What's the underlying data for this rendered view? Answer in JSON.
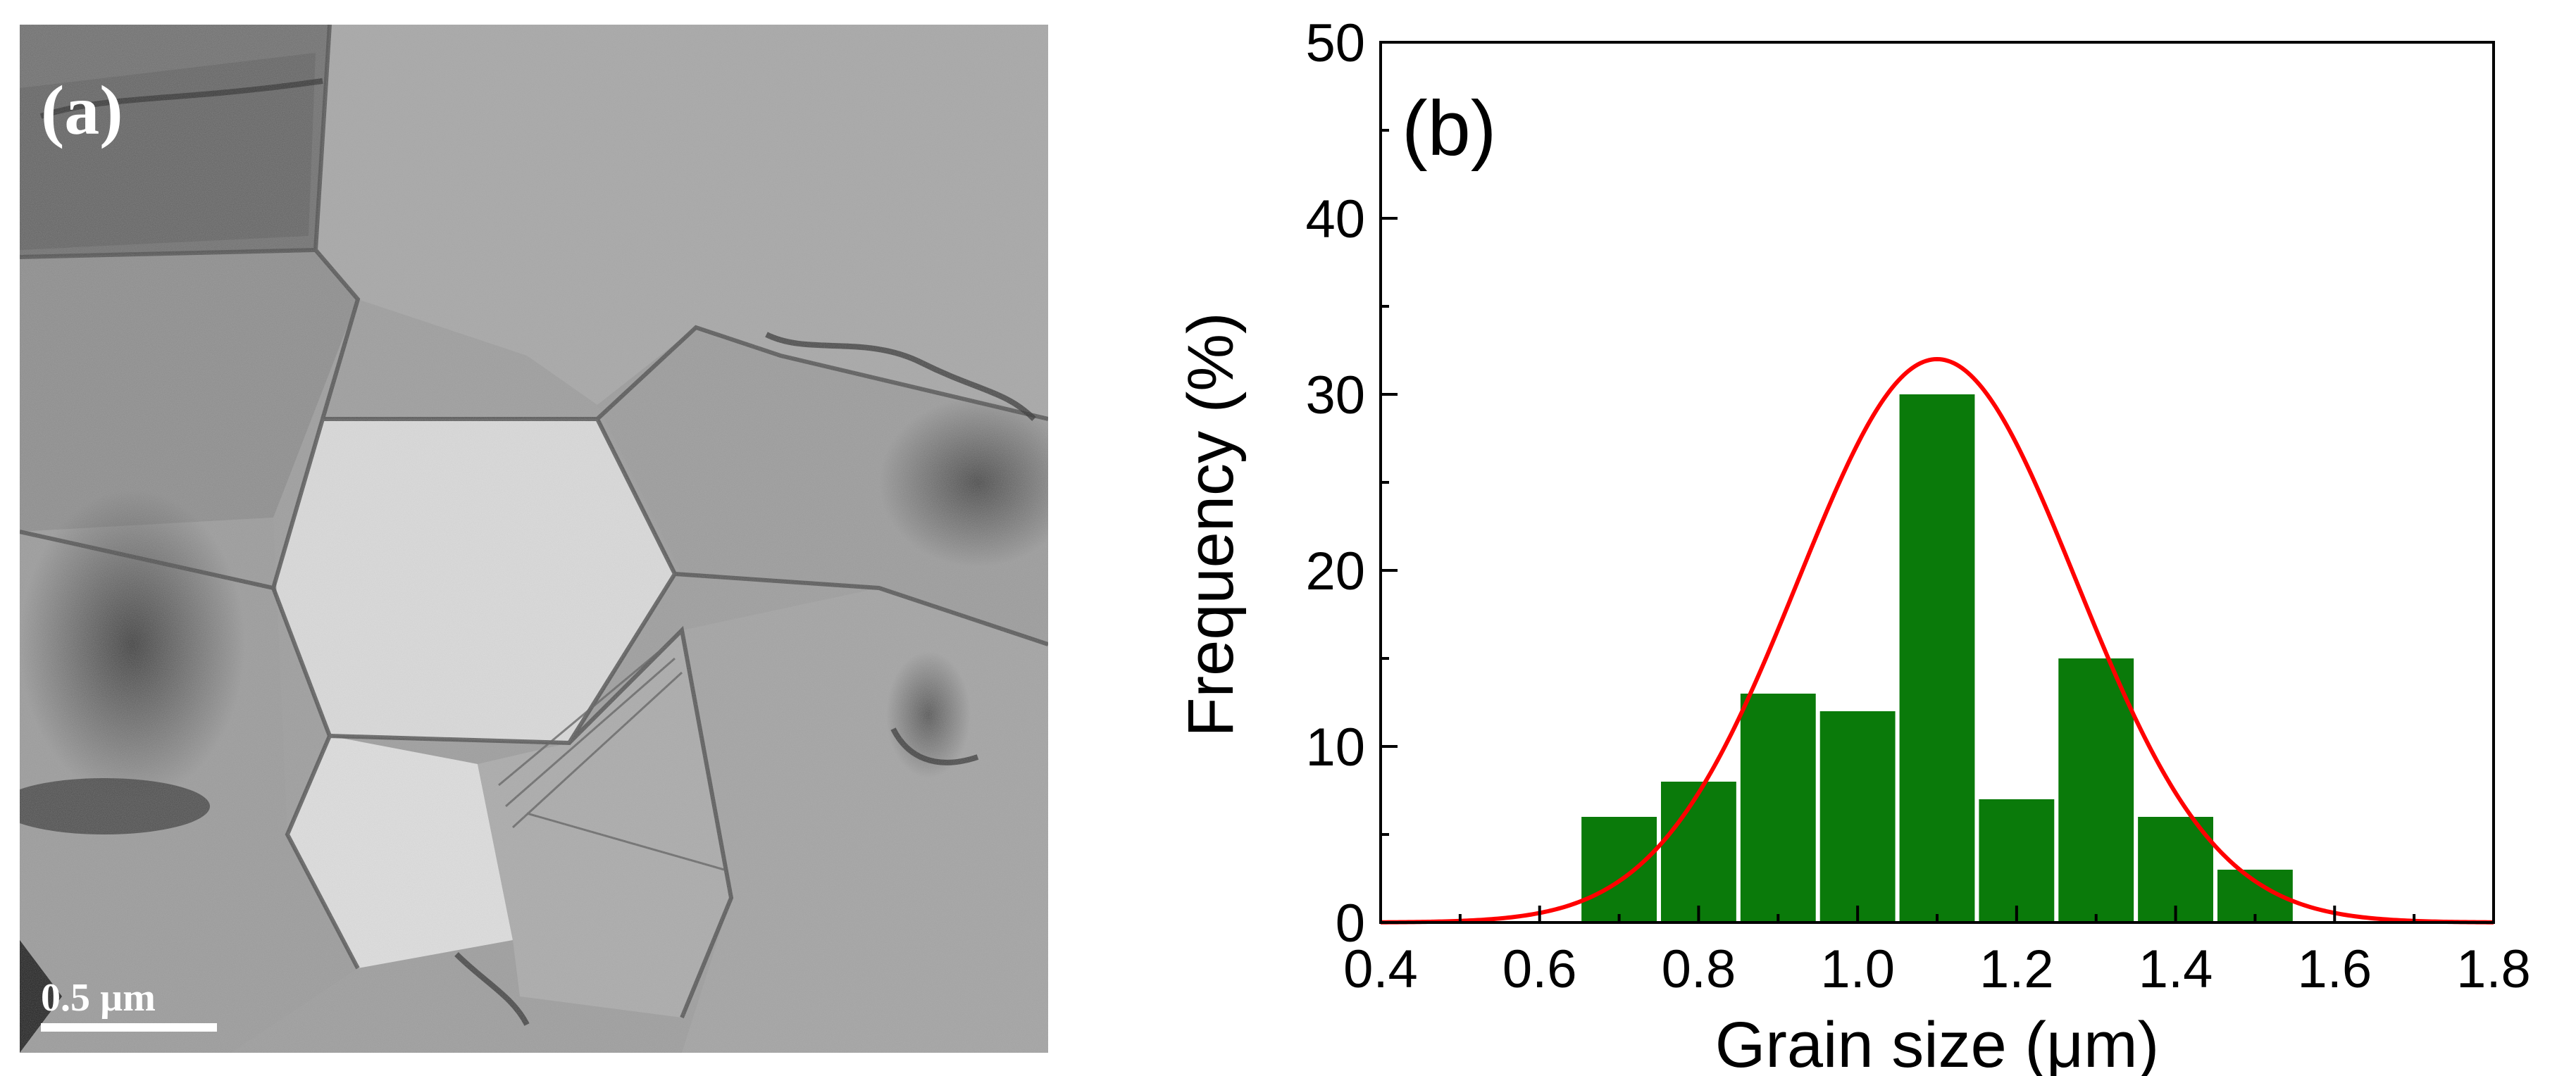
{
  "panel_a": {
    "label": "(a)",
    "scale_bar_label": "0.5 µm"
  },
  "panel_b": {
    "label": "(b)"
  },
  "chart_data": {
    "type": "bar",
    "title": "",
    "xlabel": "Grain size (μm)",
    "ylabel": "Frequency (%)",
    "xlim": [
      0.4,
      1.8
    ],
    "ylim": [
      0,
      50
    ],
    "x_ticks": [
      "0.4",
      "0.6",
      "0.8",
      "1.0",
      "1.2",
      "1.4",
      "1.6",
      "1.8"
    ],
    "y_ticks": [
      "0",
      "10",
      "20",
      "30",
      "40",
      "50"
    ],
    "bin_width": 0.1,
    "bin_centers": [
      0.7,
      0.8,
      0.9,
      1.0,
      1.1,
      1.2,
      1.3,
      1.4,
      1.5
    ],
    "values": [
      6,
      8,
      13,
      12,
      30,
      7,
      15,
      6,
      3
    ],
    "fit": {
      "type": "gaussian",
      "mean": 1.1,
      "sigma": 0.175,
      "peak": 32
    },
    "bar_color": "#0a7a0a",
    "fit_color": "#ff0000",
    "grid": false
  }
}
